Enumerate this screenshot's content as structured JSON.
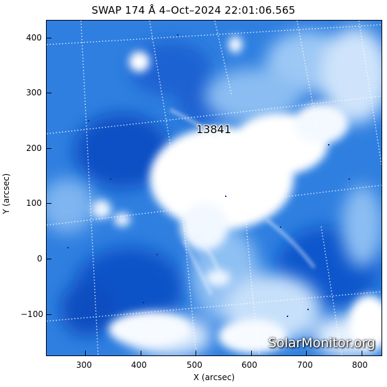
{
  "title": "SWAP 174 Å  4–Oct–2024 22:01:06.565",
  "axes": {
    "xlabel": "X (arcsec)",
    "ylabel": "Y (arcsec)",
    "x_ticks": [
      "300",
      "400",
      "500",
      "600",
      "700",
      "800"
    ],
    "y_ticks": [
      "400",
      "300",
      "200",
      "100",
      "0",
      "−100"
    ],
    "xlim": [
      230,
      840
    ],
    "ylim": [
      -175,
      430
    ]
  },
  "image": {
    "instrument": "SWAP 174 Å",
    "colormap": "blue",
    "grid": "dotted heliographic grid",
    "region_label": "13841",
    "watermark": "SolarMonitor.org"
  }
}
